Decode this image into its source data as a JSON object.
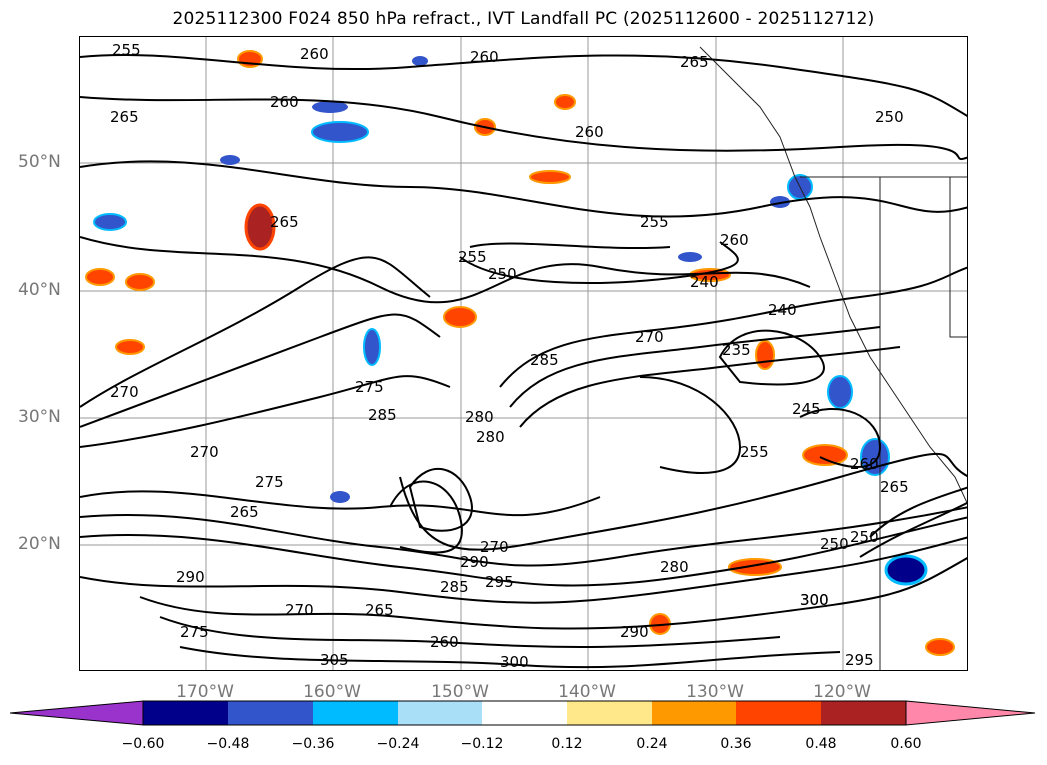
{
  "title": "2025112300 F024 850 hPa refract., IVT Landfall PC (2025112600 - 2025112712)",
  "lat_labels": [
    "50°N",
    "40°N",
    "30°N",
    "20°N"
  ],
  "lon_labels": [
    "170°W",
    "160°W",
    "150°W",
    "140°W",
    "130°W",
    "120°W"
  ],
  "colorbar": {
    "ticks": [
      "−0.60",
      "−0.48",
      "−0.36",
      "−0.24",
      "−0.12",
      "0.12",
      "0.24",
      "0.36",
      "0.48",
      "0.60"
    ],
    "colors": [
      "#9933cc",
      "#00008b",
      "#3355cc",
      "#00bbff",
      "#aadff8",
      "#ffffff",
      "#ffe88a",
      "#ff9900",
      "#ff4400",
      "#aa2222",
      "#ff88aa"
    ]
  },
  "contour_labels": [
    "255",
    "260",
    "265",
    "260",
    "265",
    "260",
    "255",
    "250",
    "245",
    "240",
    "235",
    "270",
    "275",
    "280",
    "285",
    "290",
    "295",
    "300",
    "305",
    "260",
    "265",
    "250",
    "270",
    "275",
    "280",
    "255",
    "240",
    "250",
    "285",
    "300",
    "295",
    "300",
    "290",
    "280",
    "270",
    "265",
    "260",
    "285",
    "290",
    "275",
    "270",
    "265",
    "260",
    "255",
    "250",
    "260",
    "265",
    "270"
  ]
}
